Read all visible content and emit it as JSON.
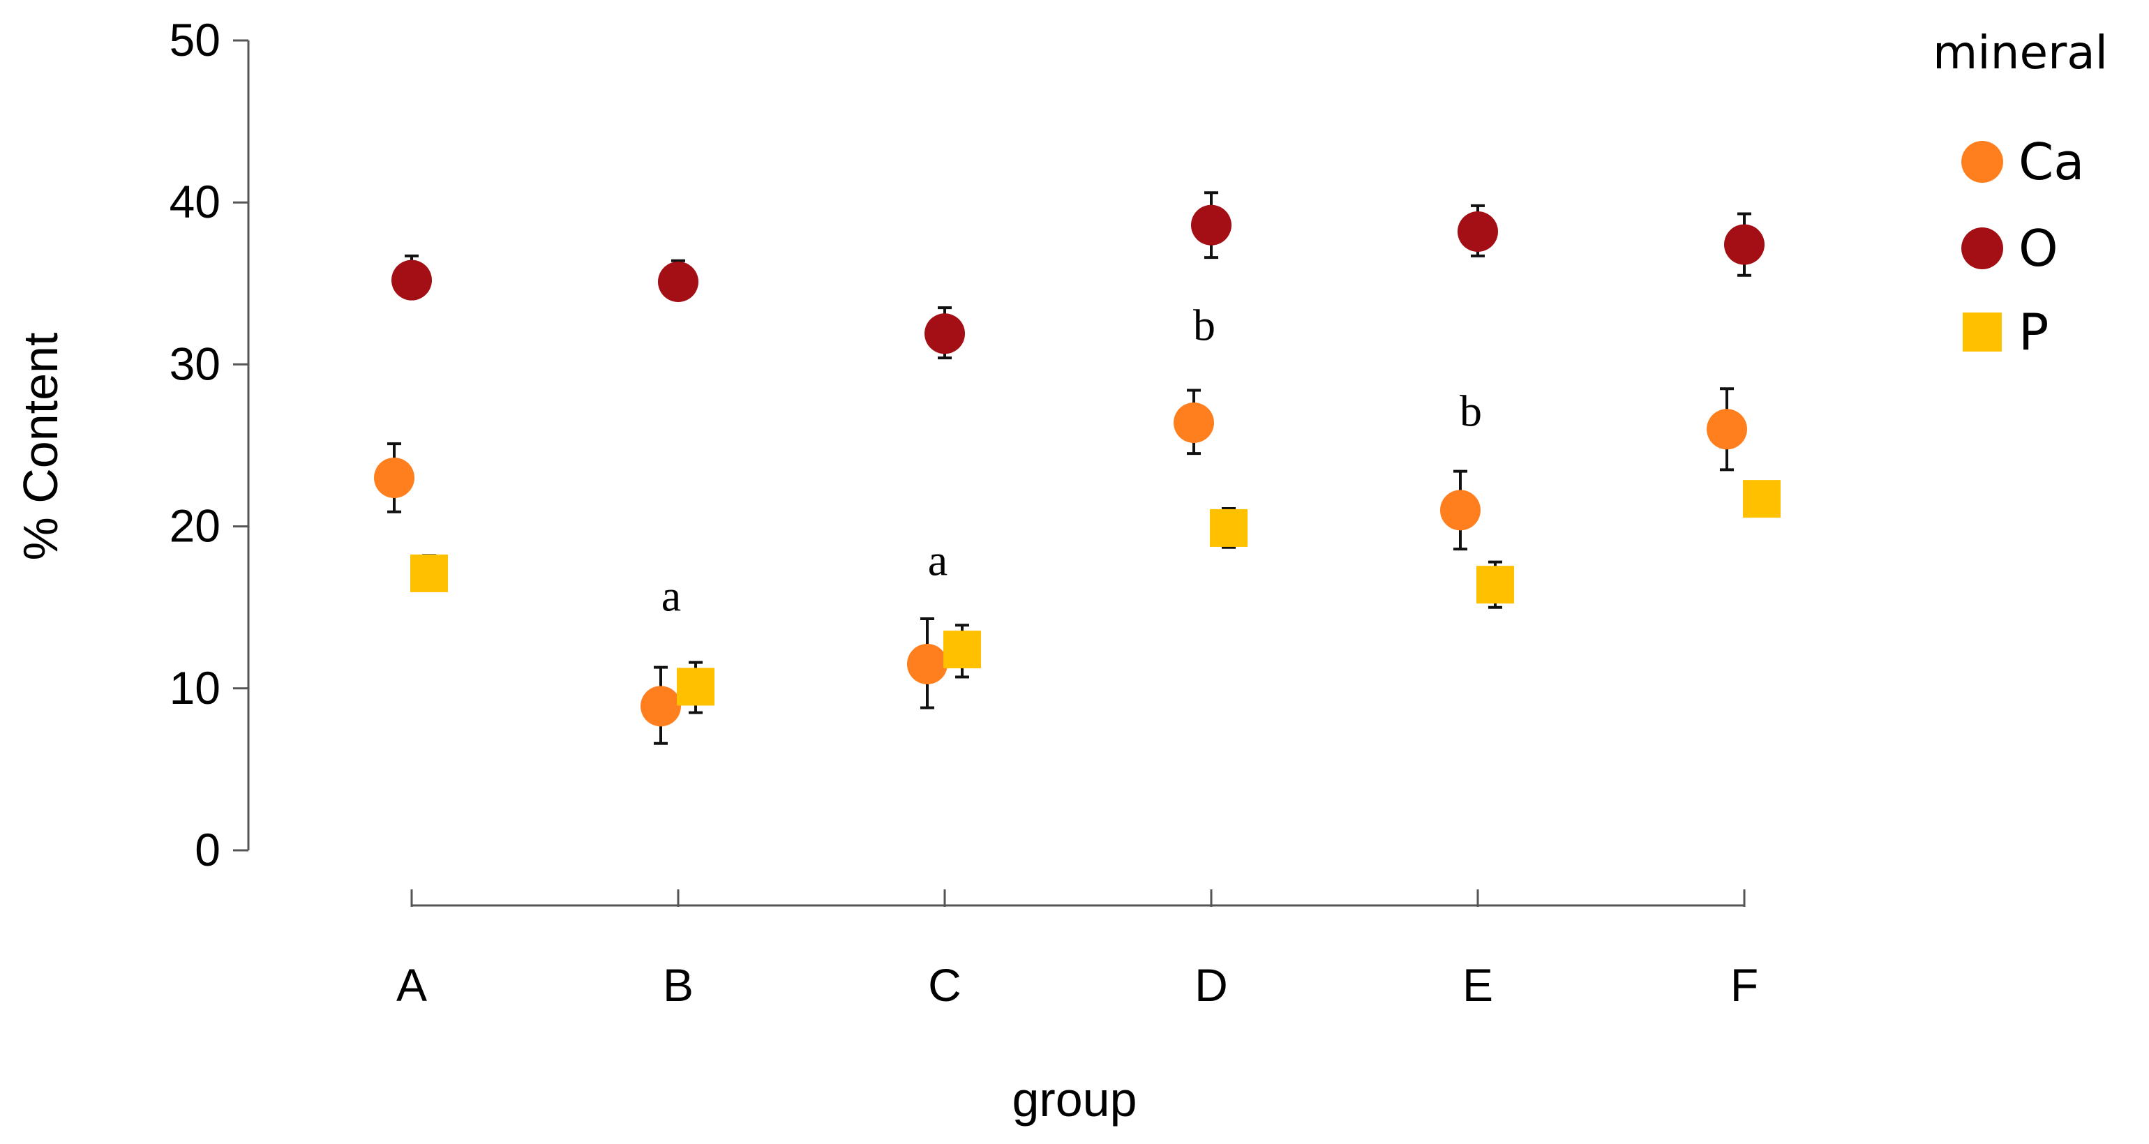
{
  "chart_data": {
    "type": "scatter",
    "title": "",
    "xlabel": "group",
    "ylabel": "% Content",
    "ylim": [
      0,
      50
    ],
    "yticks": [
      "0",
      "10",
      "20",
      "30",
      "40",
      "50"
    ],
    "categories": [
      "A",
      "B",
      "C",
      "D",
      "E",
      "F"
    ],
    "grid": false,
    "legend": {
      "title": "mineral",
      "placement": "right"
    },
    "series": [
      {
        "name": "Ca",
        "marker": "circle",
        "color": "#FF7F1E",
        "values": [
          23.0,
          8.9,
          11.5,
          26.4,
          21.0,
          26.0
        ],
        "error_low": [
          20.9,
          6.6,
          8.8,
          24.5,
          18.6,
          23.5
        ],
        "error_high": [
          25.1,
          11.3,
          14.3,
          28.4,
          23.4,
          28.5
        ]
      },
      {
        "name": "O",
        "marker": "circle",
        "color": "#A30F14",
        "values": [
          35.2,
          35.1,
          31.9,
          38.6,
          38.2,
          37.4
        ],
        "error_low": [
          34.2,
          34.2,
          30.4,
          36.6,
          36.7,
          35.5
        ],
        "error_high": [
          36.7,
          36.4,
          33.5,
          40.6,
          39.8,
          39.3
        ]
      },
      {
        "name": "P",
        "marker": "square",
        "color": "#FFC000",
        "values": [
          17.1,
          10.1,
          12.4,
          19.9,
          16.4,
          21.7
        ],
        "error_low": [
          16.1,
          8.5,
          10.7,
          18.7,
          15.0,
          21.7
        ],
        "error_high": [
          18.2,
          11.6,
          13.9,
          21.1,
          17.8,
          21.7
        ]
      }
    ],
    "annotations": [
      {
        "text": "a",
        "category": "B",
        "y": 14.8
      },
      {
        "text": "a",
        "category": "C",
        "y": 17.0
      },
      {
        "text": "b",
        "category": "D",
        "y": 31.5
      },
      {
        "text": "b",
        "category": "E",
        "y": 26.2
      }
    ]
  }
}
